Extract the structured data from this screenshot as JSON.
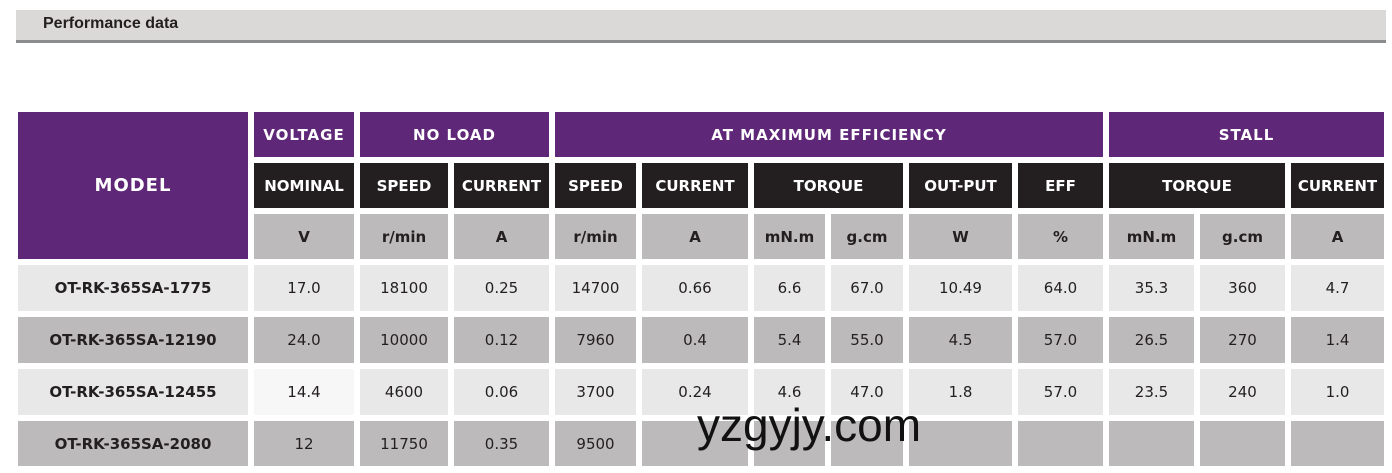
{
  "title": "Performance data",
  "headers": {
    "model": "MODEL",
    "voltage": "VOLTAGE",
    "no_load": "NO LOAD",
    "max_eff": "AT MAXIMUM EFFICIENCY",
    "stall": "STALL",
    "nominal": "NOMINAL",
    "nl_speed": "SPEED",
    "nl_current": "CURRENT",
    "me_speed": "SPEED",
    "me_current": "CURRENT",
    "me_torque": "TORQUE",
    "me_output": "OUT-PUT",
    "me_eff": "EFF",
    "st_torque": "TORQUE",
    "st_current": "CURRENT"
  },
  "units": [
    "V",
    "r/min",
    "A",
    "r/min",
    "A",
    "mN.m",
    "g.cm",
    "W",
    "%",
    "mN.m",
    "g.cm",
    "A"
  ],
  "rows": [
    {
      "model": "OT-RK-365SA-1775",
      "values": [
        "17.0",
        "18100",
        "0.25",
        "14700",
        "0.66",
        "6.6",
        "67.0",
        "10.49",
        "64.0",
        "35.3",
        "360",
        "4.7"
      ]
    },
    {
      "model": "OT-RK-365SA-12190",
      "values": [
        "24.0",
        "10000",
        "0.12",
        "7960",
        "0.4",
        "5.4",
        "55.0",
        "4.5",
        "57.0",
        "26.5",
        "270",
        "1.4"
      ]
    },
    {
      "model": "OT-RK-365SA-12455",
      "values": [
        "14.4",
        "4600",
        "0.06",
        "3700",
        "0.24",
        "4.6",
        "47.0",
        "1.8",
        "57.0",
        "23.5",
        "240",
        "1.0"
      ]
    },
    {
      "model": "OT-RK-365SA-2080",
      "values": [
        "12",
        "11750",
        "0.35",
        "9500",
        "",
        "",
        "",
        "",
        "",
        "",
        "",
        ""
      ]
    }
  ],
  "watermark": "yzgyjy.com"
}
